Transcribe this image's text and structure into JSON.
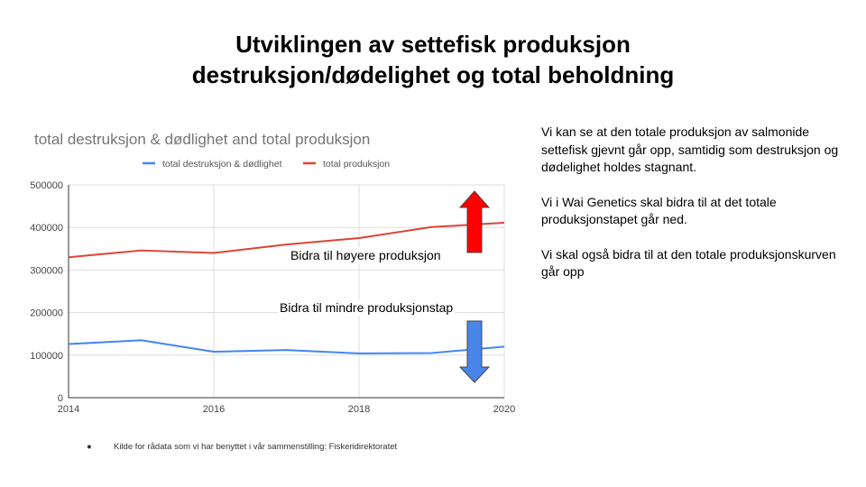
{
  "slide": {
    "title_line1": "Utviklingen av settefisk produksjon",
    "title_line2": "destruksjon/dødelighet og total beholdning"
  },
  "colors": {
    "series_destruksjon": "#4285f4",
    "series_produksjon": "#db4437",
    "arrow_up": "#ff0000",
    "arrow_down": "#4a86e8"
  },
  "chart_data": {
    "type": "line",
    "title": "total destruksjon & dødlighet and total produksjon",
    "legend_position": "top",
    "grid": true,
    "xlabel": "",
    "ylabel": "",
    "xlim": [
      2014,
      2020
    ],
    "ylim": [
      0,
      500000
    ],
    "x_ticks": [
      "2014",
      "2016",
      "2018",
      "2020"
    ],
    "y_ticks": [
      "0",
      "100000",
      "200000",
      "300000",
      "400000",
      "500000"
    ],
    "x": [
      2014,
      2015,
      2016,
      2017,
      2018,
      2019,
      2020
    ],
    "series": [
      {
        "name": "total destruksjon & dødlighet",
        "values": [
          126000,
          135000,
          108000,
          112000,
          104000,
          105000,
          120000
        ]
      },
      {
        "name": "total produksjon",
        "values": [
          330000,
          346000,
          340000,
          360000,
          375000,
          401000,
          411000
        ]
      }
    ]
  },
  "annotations": {
    "up_label": "Bidra til høyere produksjon",
    "down_label": "Bidra til mindre produksjonstap"
  },
  "side_text": [
    "Vi kan se at den totale produksjon av salmonide settefisk gjevnt går opp, samtidig som destruksjon og dødelighet holdes stagnant.",
    "Vi i Wai Genetics skal bidra til at det totale produksjonstapet går ned.",
    "Vi skal også bidra til at den totale produksjonskurven går opp"
  ],
  "footnote": {
    "bullet": "●",
    "text": "Kilde for rådata som vi har benyttet i vår sammenstilling: Fiskeridirektoratet"
  }
}
